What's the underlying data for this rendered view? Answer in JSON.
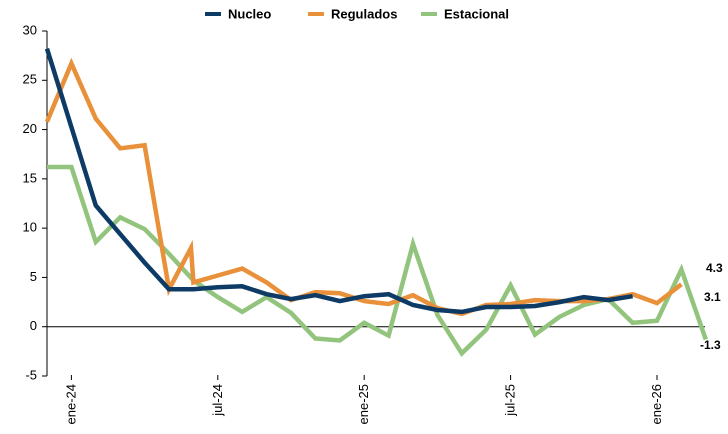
{
  "chart_data": {
    "type": "line",
    "title": "",
    "xlabel": "",
    "ylabel": "",
    "ylim": [
      -5,
      30
    ],
    "yticks": [
      -5,
      0,
      5,
      10,
      15,
      20,
      25,
      30
    ],
    "grid": false,
    "legend_placement": "top-center",
    "x": [
      "ene-24",
      "feb-24",
      "mar-24",
      "abr-24",
      "may-24",
      "jun-24",
      "jul-24",
      "ago-24",
      "sep-24",
      "oct-24",
      "nov-24",
      "dic-24",
      "ene-25",
      "feb-25",
      "mar-25",
      "abr-25",
      "may-25",
      "jun-25",
      "jul-25",
      "ago-25",
      "sep-25",
      "oct-25",
      "nov-25",
      "dic-25",
      "ene-26",
      "feb-26"
    ],
    "xtick_labels": [
      {
        "index": 1,
        "label": "ene-24"
      },
      {
        "index": 7,
        "label": "jul-24"
      },
      {
        "index": 13,
        "label": "ene-25"
      },
      {
        "index": 19,
        "label": "jul-25"
      },
      {
        "index": 25,
        "label": "ene-26"
      }
    ],
    "series": [
      {
        "name": "Nucleo",
        "color": "#0d3b66",
        "points": [
          [
            0,
            28.2
          ],
          [
            2,
            12.3
          ],
          [
            4,
            6.5
          ],
          [
            5,
            3.8
          ],
          [
            6,
            3.8
          ],
          [
            7,
            4.0
          ],
          [
            8,
            4.1
          ],
          [
            9,
            3.3
          ],
          [
            10,
            2.8
          ],
          [
            11,
            3.2
          ],
          [
            12,
            2.6
          ],
          [
            13,
            3.1
          ],
          [
            14,
            3.3
          ],
          [
            15,
            2.2
          ],
          [
            16,
            1.7
          ],
          [
            17,
            1.5
          ],
          [
            18,
            2.0
          ],
          [
            19,
            2.0
          ],
          [
            20,
            2.1
          ],
          [
            21,
            2.5
          ],
          [
            22,
            3.0
          ],
          [
            23,
            2.7
          ],
          [
            24,
            3.1
          ]
        ],
        "end_label": "3.1"
      },
      {
        "name": "Regulados",
        "color": "#e8913a",
        "points": [
          [
            0,
            20.8
          ],
          [
            1,
            26.7
          ],
          [
            2,
            21.1
          ],
          [
            3,
            18.1
          ],
          [
            4,
            18.4
          ],
          [
            5,
            3.8
          ],
          [
            5.9,
            8.0
          ],
          [
            6,
            4.5
          ],
          [
            7,
            5.2
          ],
          [
            8,
            5.9
          ],
          [
            9,
            4.5
          ],
          [
            10,
            2.7
          ],
          [
            11,
            3.5
          ],
          [
            12,
            3.4
          ],
          [
            13,
            2.6
          ],
          [
            14,
            2.3
          ],
          [
            15,
            3.2
          ],
          [
            16,
            1.9
          ],
          [
            17,
            1.3
          ],
          [
            18,
            2.2
          ],
          [
            19,
            2.3
          ],
          [
            20,
            2.7
          ],
          [
            21,
            2.6
          ],
          [
            22,
            2.6
          ],
          [
            23,
            2.8
          ],
          [
            24,
            3.3
          ],
          [
            25,
            2.4
          ],
          [
            26,
            4.3
          ]
        ],
        "end_label": "4.3"
      },
      {
        "name": "Estacional",
        "color": "#93c47d",
        "points": [
          [
            0,
            16.2
          ],
          [
            1,
            16.2
          ],
          [
            2,
            8.6
          ],
          [
            3,
            11.1
          ],
          [
            4,
            9.9
          ],
          [
            5,
            7.4
          ],
          [
            6,
            4.7
          ],
          [
            7,
            3.0
          ],
          [
            8,
            1.5
          ],
          [
            9,
            3.0
          ],
          [
            10,
            1.4
          ],
          [
            11,
            -1.2
          ],
          [
            12,
            -1.4
          ],
          [
            13,
            0.4
          ],
          [
            14,
            -0.9
          ],
          [
            15,
            8.4
          ],
          [
            16,
            1.2
          ],
          [
            17,
            -2.7
          ],
          [
            18,
            -0.3
          ],
          [
            19,
            4.2
          ],
          [
            20,
            -0.8
          ],
          [
            21,
            1.0
          ],
          [
            22,
            2.2
          ],
          [
            23,
            2.8
          ],
          [
            24,
            0.4
          ],
          [
            25,
            0.6
          ],
          [
            26,
            5.8
          ],
          [
            27,
            -1.3
          ]
        ],
        "end_label": "-1.3"
      }
    ]
  }
}
